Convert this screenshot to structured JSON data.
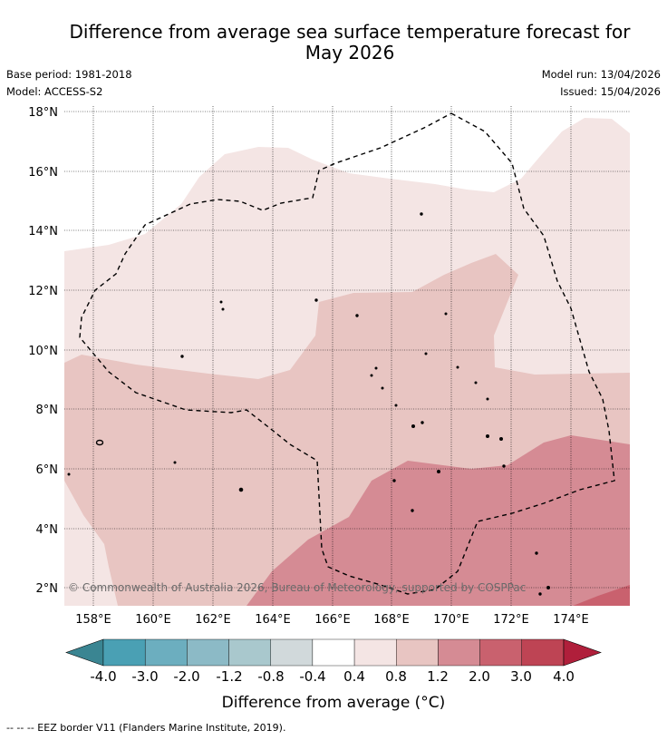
{
  "header": {
    "title_line1": "Difference from average sea surface temperature forecast for",
    "title_line2": "May 2026",
    "base_period": "Base period: 1981-2018",
    "model": "Model: ACCESS-S2",
    "model_run": "Model run: 13/04/2026",
    "issued": "Issued: 15/04/2026"
  },
  "map": {
    "lat_labels": [
      "18°N",
      "16°N",
      "14°N",
      "12°N",
      "10°N",
      "8°N",
      "6°N",
      "4°N",
      "2°N"
    ],
    "lon_labels": [
      "158°E",
      "160°E",
      "162°E",
      "164°E",
      "166°E",
      "168°E",
      "170°E",
      "172°E",
      "174°E"
    ],
    "copyright": "© Commonwealth of Australia 2026, Bureau of Meteorology, supported by COSPPac"
  },
  "colorbar": {
    "labels": [
      "-4.0",
      "-3.0",
      "-2.0",
      "-1.2",
      "-0.8",
      "-0.4",
      "0.4",
      "0.8",
      "1.2",
      "2.0",
      "3.0",
      "4.0"
    ],
    "colors": [
      "#4aa0b4",
      "#6caebf",
      "#8cbac6",
      "#a9c8cd",
      "#d1d9db",
      "#ffffff",
      "#f4e5e4",
      "#e8c5c2",
      "#d58b94",
      "#c9616e",
      "#be4454"
    ],
    "under_color": "#3a8592",
    "over_color": "#b01f3b",
    "title": "Difference from average (°C)"
  },
  "footer": {
    "legend": "--  --  -- EEZ border V11 (Flanders Marine Institute, 2019)."
  }
}
